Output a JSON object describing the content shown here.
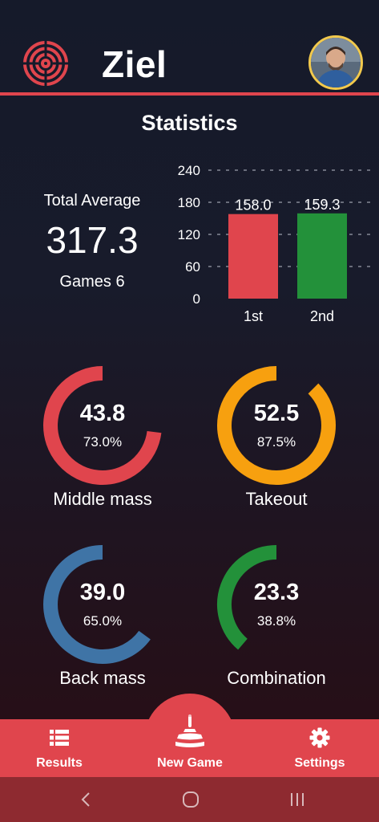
{
  "app": {
    "title": "Ziel"
  },
  "header": {
    "logo_icon": "target-icon",
    "avatar_icon": "user-avatar"
  },
  "statistics": {
    "title": "Statistics",
    "total_average_label": "Total Average",
    "total_average_value": "317.3",
    "games_label": "Games 6"
  },
  "chart_data": {
    "type": "bar",
    "categories": [
      "1st",
      "2nd"
    ],
    "values": [
      158.0,
      159.3
    ],
    "value_labels": [
      "158.0",
      "159.3"
    ],
    "colors": [
      "#e0454d",
      "#23913a"
    ],
    "yticks": [
      "240",
      "180",
      "120",
      "60",
      "0"
    ],
    "ylim": [
      0,
      240
    ],
    "grid": "dashed"
  },
  "metrics": [
    {
      "value": "43.8",
      "percent": "73.0%",
      "label": "Middle mass",
      "fraction": 0.73,
      "color": "#e0454d"
    },
    {
      "value": "52.5",
      "percent": "87.5%",
      "label": "Takeout",
      "fraction": 0.875,
      "color": "#f7a00f"
    },
    {
      "value": "39.0",
      "percent": "65.0%",
      "label": "Back mass",
      "fraction": 0.65,
      "color": "#3f74a6"
    },
    {
      "value": "23.3",
      "percent": "38.8%",
      "label": "Combination",
      "fraction": 0.388,
      "color": "#23913a"
    }
  ],
  "nav": {
    "results_label": "Results",
    "new_game_label": "New Game",
    "settings_label": "Settings",
    "results_icon": "list-icon",
    "new_game_icon": "curling-stone-icon",
    "settings_icon": "gear-icon"
  },
  "system_nav": {
    "back_icon": "back-icon",
    "home_icon": "home-icon",
    "recents_icon": "recents-icon"
  }
}
